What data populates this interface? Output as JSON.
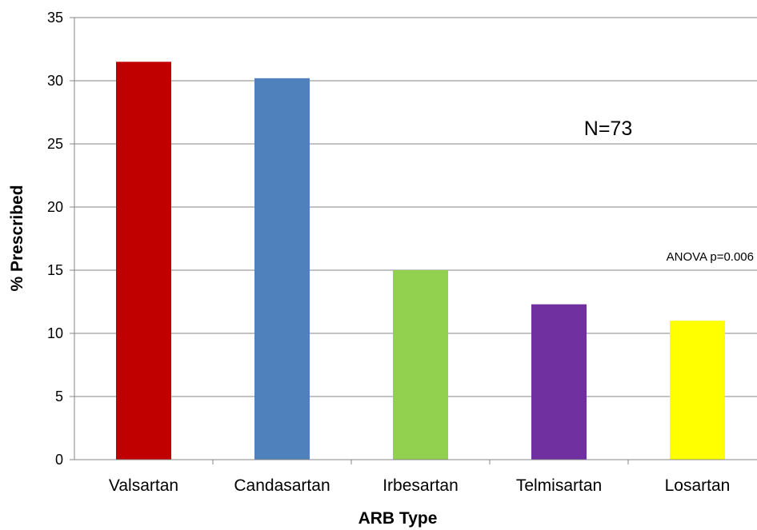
{
  "chart_data": {
    "type": "bar",
    "title": "",
    "xlabel": "ARB Type",
    "ylabel": "% Prescribed",
    "ylim": [
      0,
      35
    ],
    "ytick_step": 5,
    "yticks": [
      "0",
      "5",
      "10",
      "15",
      "20",
      "25",
      "30",
      "35"
    ],
    "grid": true,
    "legend": "none",
    "categories": [
      "Valsartan",
      "Candasartan",
      "Irbesartan",
      "Telmisartan",
      "Losartan"
    ],
    "values": [
      31.5,
      30.2,
      15.0,
      12.3,
      11.0
    ],
    "colors": [
      "#C00000",
      "#4F81BD",
      "#92D050",
      "#7030A0",
      "#FFFF00"
    ],
    "annotations": [
      "N=73",
      "ANOVA p=0.006"
    ]
  }
}
